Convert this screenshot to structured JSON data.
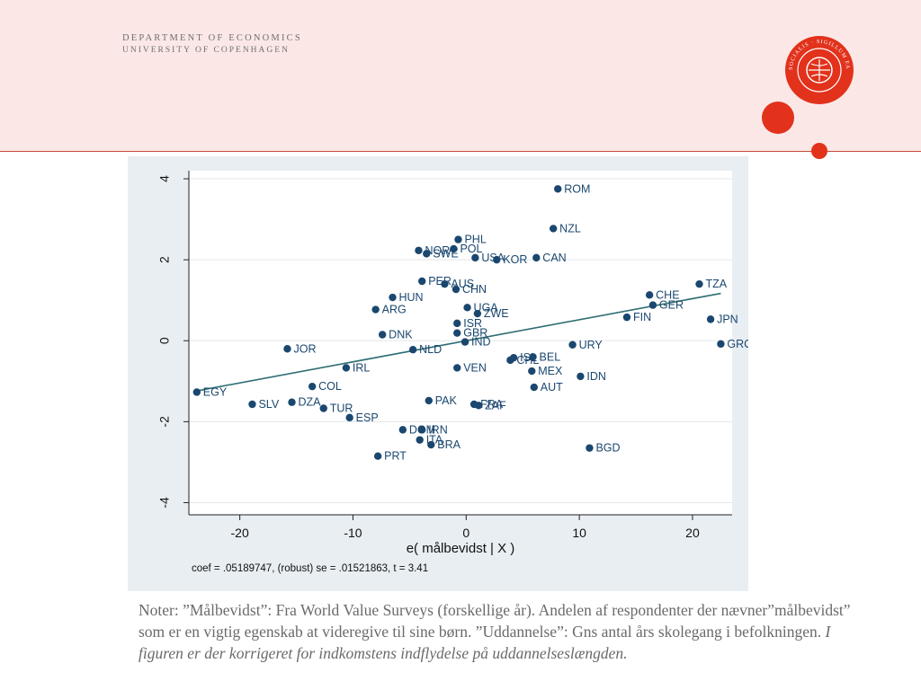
{
  "header": {
    "line1": "DEPARTMENT OF ECONOMICS",
    "line2": "UNIVERSITY OF COPENHAGEN"
  },
  "colors": {
    "header_background": "#fbe8e6",
    "accent_red": "#e2321c",
    "marker": "#1a476f",
    "fit_line": "#2e6e73",
    "panel_background": "#e8eef2"
  },
  "chart_data": {
    "type": "scatter",
    "title": "",
    "xlabel": "e( målbevidst | X )",
    "ylabel": "",
    "xlim": [
      -24.5,
      23.5
    ],
    "ylim": [
      -4.3,
      4.2
    ],
    "x_ticks": [
      -20,
      -10,
      0,
      10,
      20
    ],
    "x_tick_labels": [
      "-20",
      "-10",
      "0",
      "10",
      "20"
    ],
    "y_ticks": [
      -4,
      -2,
      0,
      2,
      4
    ],
    "y_tick_labels": [
      "-4",
      "-2",
      "0",
      "2",
      "4"
    ],
    "grid": true,
    "fit_line": {
      "x": [
        -24,
        22.5
      ],
      "y": [
        -1.25,
        1.17
      ]
    },
    "note": "coef = .05189747, (robust) se = .01521863, t = 3.41",
    "points": [
      {
        "label": "ROM",
        "x": 8.1,
        "y": 3.75
      },
      {
        "label": "NZL",
        "x": 7.7,
        "y": 2.77
      },
      {
        "label": "PHL",
        "x": -0.7,
        "y": 2.5
      },
      {
        "label": "NOR",
        "x": -4.2,
        "y": 2.23
      },
      {
        "label": "SWE",
        "x": -3.5,
        "y": 2.15
      },
      {
        "label": "POL",
        "x": -1.1,
        "y": 2.27
      },
      {
        "label": "USA",
        "x": 0.8,
        "y": 2.05
      },
      {
        "label": "KOR",
        "x": 2.7,
        "y": 2.0
      },
      {
        "label": "CAN",
        "x": 6.2,
        "y": 2.05
      },
      {
        "label": "PER",
        "x": -3.9,
        "y": 1.47
      },
      {
        "label": "AUS",
        "x": -1.9,
        "y": 1.4
      },
      {
        "label": "CHN",
        "x": -0.9,
        "y": 1.27
      },
      {
        "label": "HUN",
        "x": -6.5,
        "y": 1.07
      },
      {
        "label": "TZA",
        "x": 20.6,
        "y": 1.4
      },
      {
        "label": "CHE",
        "x": 16.2,
        "y": 1.13
      },
      {
        "label": "GER",
        "x": 16.5,
        "y": 0.88
      },
      {
        "label": "ARG",
        "x": -8.0,
        "y": 0.77
      },
      {
        "label": "UGA",
        "x": 0.1,
        "y": 0.82
      },
      {
        "label": "ZWE",
        "x": 1.0,
        "y": 0.67
      },
      {
        "label": "FIN",
        "x": 14.2,
        "y": 0.58
      },
      {
        "label": "JPN",
        "x": 21.6,
        "y": 0.53
      },
      {
        "label": "ISR",
        "x": -0.8,
        "y": 0.43
      },
      {
        "label": "GBR",
        "x": -0.8,
        "y": 0.19
      },
      {
        "label": "DNK",
        "x": -7.4,
        "y": 0.15
      },
      {
        "label": "IND",
        "x": -0.1,
        "y": -0.03
      },
      {
        "label": "URY",
        "x": 9.4,
        "y": -0.1
      },
      {
        "label": "GRC",
        "x": 22.5,
        "y": -0.08
      },
      {
        "label": "JOR",
        "x": -15.8,
        "y": -0.2
      },
      {
        "label": "NLD",
        "x": -4.7,
        "y": -0.22
      },
      {
        "label": "ISL",
        "x": 4.2,
        "y": -0.42
      },
      {
        "label": "CHL",
        "x": 3.9,
        "y": -0.48
      },
      {
        "label": "BEL",
        "x": 5.9,
        "y": -0.4
      },
      {
        "label": "IRL",
        "x": -10.6,
        "y": -0.67
      },
      {
        "label": "VEN",
        "x": -0.8,
        "y": -0.67
      },
      {
        "label": "MEX",
        "x": 5.8,
        "y": -0.75
      },
      {
        "label": "IDN",
        "x": 10.1,
        "y": -0.88
      },
      {
        "label": "EGY",
        "x": -23.8,
        "y": -1.27
      },
      {
        "label": "COL",
        "x": -13.6,
        "y": -1.13
      },
      {
        "label": "AUT",
        "x": 6.0,
        "y": -1.15
      },
      {
        "label": "SLV",
        "x": -18.9,
        "y": -1.57
      },
      {
        "label": "DZA",
        "x": -15.4,
        "y": -1.52
      },
      {
        "label": "TUR",
        "x": -12.6,
        "y": -1.67
      },
      {
        "label": "PAK",
        "x": -3.3,
        "y": -1.48
      },
      {
        "label": "FRA",
        "x": 0.7,
        "y": -1.57
      },
      {
        "label": "ZAF",
        "x": 1.1,
        "y": -1.6
      },
      {
        "label": "ESP",
        "x": -10.3,
        "y": -1.9
      },
      {
        "label": "DOM",
        "x": -5.6,
        "y": -2.2
      },
      {
        "label": "IRN",
        "x": -3.9,
        "y": -2.2
      },
      {
        "label": "ITA",
        "x": -4.1,
        "y": -2.45
      },
      {
        "label": "BRA",
        "x": -3.1,
        "y": -2.57
      },
      {
        "label": "BGD",
        "x": 10.9,
        "y": -2.65
      },
      {
        "label": "PRT",
        "x": -7.8,
        "y": -2.85
      }
    ]
  },
  "notes": {
    "text_plain": "Noter: ”Målbevidst”: Fra World Value Surveys (forskellige år). Andelen af respondenter der nævner”målbevidst” som er en vigtig egenskab at videregive til sine børn.  ”Uddannelse”: Gns antal års skolegang i befolkningen. ",
    "text_italic": "I figuren er der korrigeret for indkomstens indflydelse på uddannelseslængden."
  },
  "seal": {
    "icon": "university-seal-icon",
    "inscription": "SOCIALIS · SIGILLUM FACULTATIS SCIENTIAE"
  }
}
